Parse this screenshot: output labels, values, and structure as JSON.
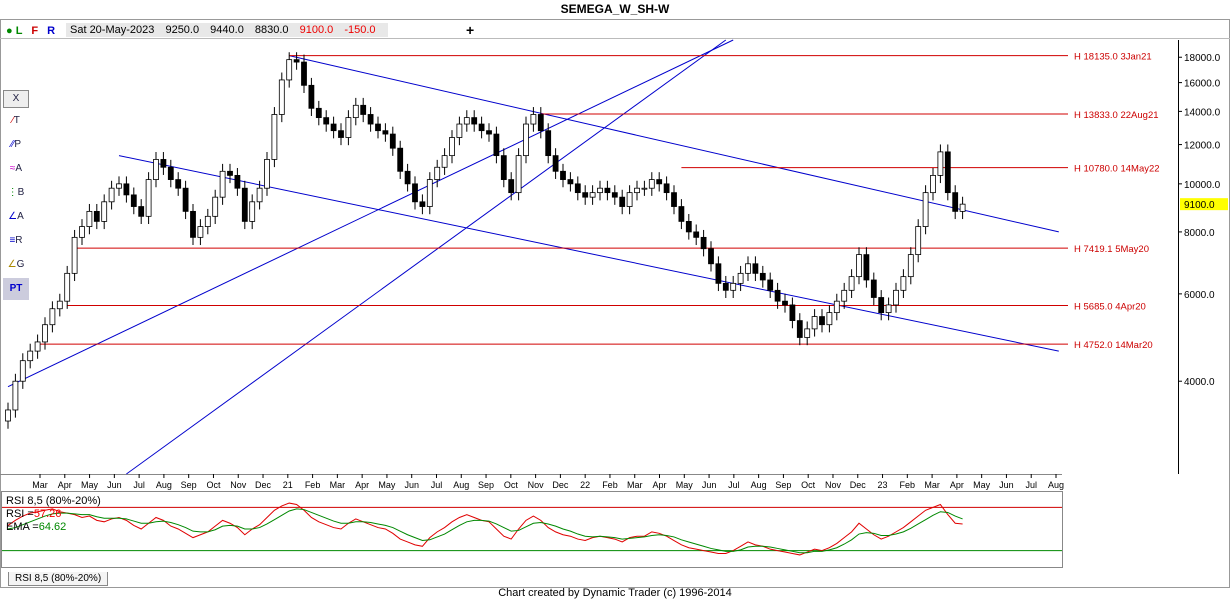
{
  "title": "SEMEGA_W_SH-W",
  "ohlc_bar": {
    "date": "Sat 20-May-2023",
    "open": "9250.0",
    "high": "9440.0",
    "low": "8830.0",
    "close": "9100.0",
    "change": "-150.0"
  },
  "toolbar": {
    "flags": [
      "L",
      "F",
      "R"
    ],
    "add_label": "+",
    "close_label": "X",
    "tool_labels": [
      "T",
      "P",
      "A",
      "B",
      "A",
      "R",
      "G",
      "PT"
    ]
  },
  "footer": "Chart created by Dynamic Trader  (c) 1996-2014",
  "indicator_tab": "RSI 8,5 (80%-20%)",
  "rsi_legend": {
    "title": "RSI 8,5 (80%-20%)",
    "rsi_label": "RSI =",
    "rsi_value": "57.26",
    "ema_label": "EMA =",
    "ema_value": "64.62"
  },
  "colors": {
    "up_candle": "#ffffff",
    "down_candle": "#000000",
    "trend_line": "#0000cc",
    "level_line": "#d00000",
    "rsi_line": "#e00000",
    "ema_line": "#008800",
    "price_tag": "#ffff00"
  },
  "chart_data": {
    "type": "candlestick",
    "y_scale": "log",
    "ylim": [
      2600,
      19500
    ],
    "y_ticks": [
      4000,
      6000,
      8000,
      10000,
      12000,
      14000,
      16000,
      18000
    ],
    "y_tick_labels": [
      "4000.0",
      "6000.0",
      "8000.0",
      "10000.0",
      "12000.0",
      "14000.0",
      "16000.0",
      "18000.0"
    ],
    "x_tick_labels": [
      "Mar",
      "Apr",
      "May",
      "Jun",
      "Jul",
      "Aug",
      "Sep",
      "Oct",
      "Nov",
      "Dec",
      "21",
      "Feb",
      "Mar",
      "Apr",
      "May",
      "Jun",
      "Jul",
      "Aug",
      "Sep",
      "Oct",
      "Nov",
      "Dec",
      "22",
      "Feb",
      "Mar",
      "Apr",
      "May",
      "Jun",
      "Jul",
      "Aug",
      "Sep",
      "Oct",
      "Nov",
      "Dec",
      "23",
      "Feb",
      "Mar",
      "Apr",
      "May",
      "Jun",
      "Jul",
      "Aug"
    ],
    "last_price_label": "9100.0",
    "levels": [
      {
        "price": 18135,
        "label": "H 18135.0 3Jan21"
      },
      {
        "price": 13833,
        "label": "H 13833.0 22Aug21"
      },
      {
        "price": 10780,
        "label": "H 10780.0 14May22"
      },
      {
        "price": 7419.1,
        "label": "H 7419.1 5May20"
      },
      {
        "price": 5685,
        "label": "H 5685.0 4Apr20"
      },
      {
        "price": 4752,
        "label": "H 4752.0 14Mar20"
      }
    ],
    "closes": [
      3500,
      4000,
      4400,
      4600,
      4800,
      5200,
      5600,
      5800,
      6600,
      7800,
      8200,
      8800,
      8400,
      9200,
      9800,
      10000,
      9500,
      9000,
      8600,
      10200,
      11200,
      10800,
      10200,
      9800,
      8800,
      7800,
      8200,
      8600,
      9400,
      10600,
      10400,
      9800,
      8400,
      9200,
      9800,
      11200,
      13800,
      16200,
      17800,
      17600,
      15800,
      14200,
      13600,
      13200,
      12800,
      12400,
      13600,
      14400,
      13800,
      13200,
      12800,
      12600,
      11800,
      10600,
      10000,
      9200,
      9000,
      10200,
      10800,
      11400,
      12400,
      13200,
      13600,
      13200,
      12800,
      12600,
      11400,
      10200,
      9600,
      11400,
      13200,
      13800,
      12800,
      11400,
      10600,
      10200,
      10000,
      9600,
      9400,
      9600,
      9800,
      9600,
      9400,
      9000,
      9600,
      9800,
      9800,
      10200,
      10000,
      9600,
      9000,
      8400,
      8000,
      7800,
      7400,
      6900,
      6300,
      6100,
      6300,
      6600,
      6900,
      6600,
      6400,
      6100,
      5800,
      5700,
      5300,
      4900,
      5100,
      5400,
      5200,
      5500,
      5800,
      6100,
      6500,
      7200,
      6400,
      5900,
      5500,
      5700,
      6100,
      6500,
      7200,
      8200,
      9600,
      10400,
      11600,
      9600,
      8800,
      9100
    ],
    "rsi": [
      55,
      62,
      68,
      72,
      74,
      76,
      78,
      74,
      72,
      70,
      66,
      68,
      62,
      60,
      64,
      66,
      62,
      55,
      50,
      58,
      66,
      62,
      54,
      50,
      44,
      38,
      42,
      46,
      54,
      62,
      58,
      52,
      42,
      50,
      56,
      66,
      76,
      82,
      86,
      84,
      76,
      66,
      60,
      56,
      52,
      50,
      58,
      64,
      60,
      56,
      52,
      50,
      44,
      36,
      32,
      28,
      26,
      38,
      46,
      52,
      60,
      66,
      70,
      66,
      62,
      60,
      50,
      40,
      36,
      50,
      62,
      68,
      62,
      52,
      46,
      42,
      40,
      36,
      34,
      38,
      40,
      38,
      36,
      32,
      38,
      40,
      40,
      46,
      44,
      40,
      34,
      28,
      24,
      22,
      20,
      18,
      16,
      16,
      20,
      26,
      32,
      28,
      26,
      22,
      20,
      18,
      16,
      14,
      18,
      22,
      20,
      24,
      30,
      38,
      46,
      58,
      50,
      42,
      36,
      40,
      46,
      52,
      60,
      68,
      76,
      80,
      84,
      70,
      58,
      57
    ],
    "ema": [
      50,
      52,
      56,
      60,
      64,
      68,
      71,
      72,
      72,
      71,
      70,
      70,
      67,
      65,
      65,
      65,
      64,
      61,
      58,
      58,
      60,
      61,
      59,
      56,
      52,
      47,
      46,
      46,
      49,
      54,
      55,
      54,
      50,
      50,
      52,
      57,
      63,
      69,
      75,
      78,
      77,
      73,
      69,
      65,
      61,
      58,
      58,
      60,
      60,
      59,
      57,
      55,
      52,
      47,
      42,
      38,
      34,
      35,
      39,
      43,
      49,
      55,
      60,
      62,
      62,
      61,
      57,
      52,
      47,
      48,
      53,
      58,
      59,
      57,
      54,
      50,
      47,
      43,
      40,
      39,
      40,
      39,
      38,
      36,
      37,
      38,
      39,
      41,
      42,
      41,
      39,
      35,
      32,
      29,
      26,
      23,
      21,
      19,
      19,
      21,
      25,
      26,
      26,
      25,
      23,
      21,
      19,
      17,
      17,
      19,
      19,
      21,
      24,
      29,
      35,
      43,
      45,
      44,
      41,
      41,
      43,
      46,
      51,
      57,
      63,
      69,
      74,
      73,
      68,
      64
    ],
    "rsi_ylim": [
      0,
      100
    ],
    "rsi_bands": [
      20,
      80
    ]
  }
}
